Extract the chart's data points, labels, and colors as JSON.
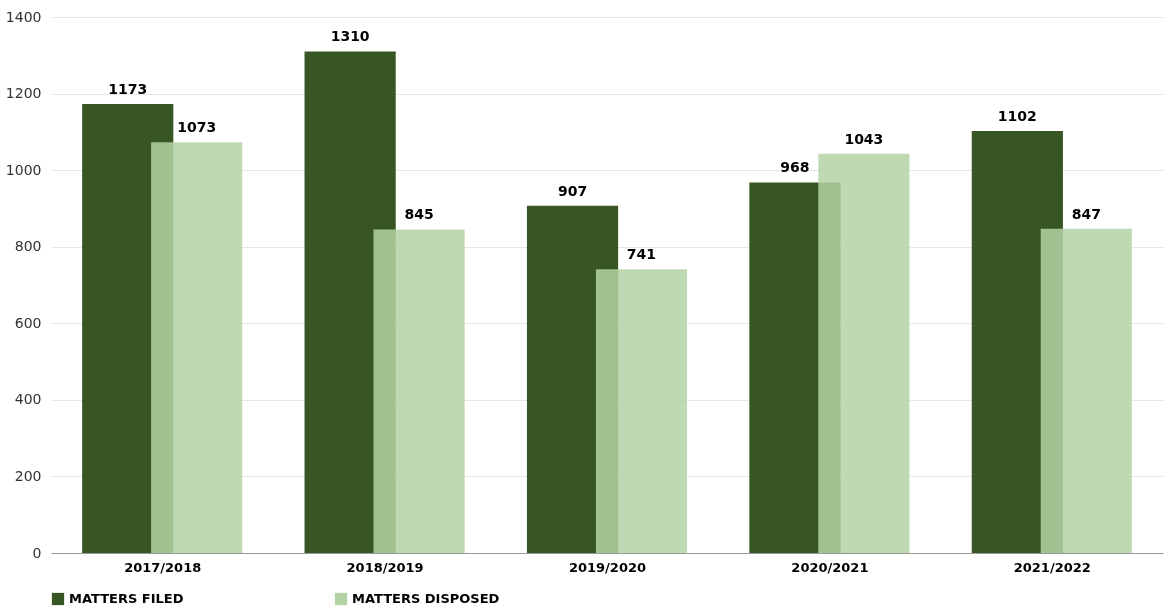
{
  "chart_data": {
    "type": "bar",
    "categories": [
      "2017/2018",
      "2018/2019",
      "2019/2020",
      "2020/2021",
      "2021/2022"
    ],
    "series": [
      {
        "name": "MATTERS FILED",
        "color": "#375623",
        "values": [
          1173,
          1310,
          907,
          968,
          1102
        ]
      },
      {
        "name": "MATTERS DISPOSED",
        "color": "#b4d3a4",
        "values": [
          1073,
          845,
          741,
          1043,
          847
        ]
      }
    ],
    "ylim": [
      0,
      1400
    ],
    "yticks": [
      0,
      200,
      400,
      600,
      800,
      1000,
      1200,
      1400
    ],
    "grid": "y",
    "legend": "bottom",
    "data_labels": true
  }
}
